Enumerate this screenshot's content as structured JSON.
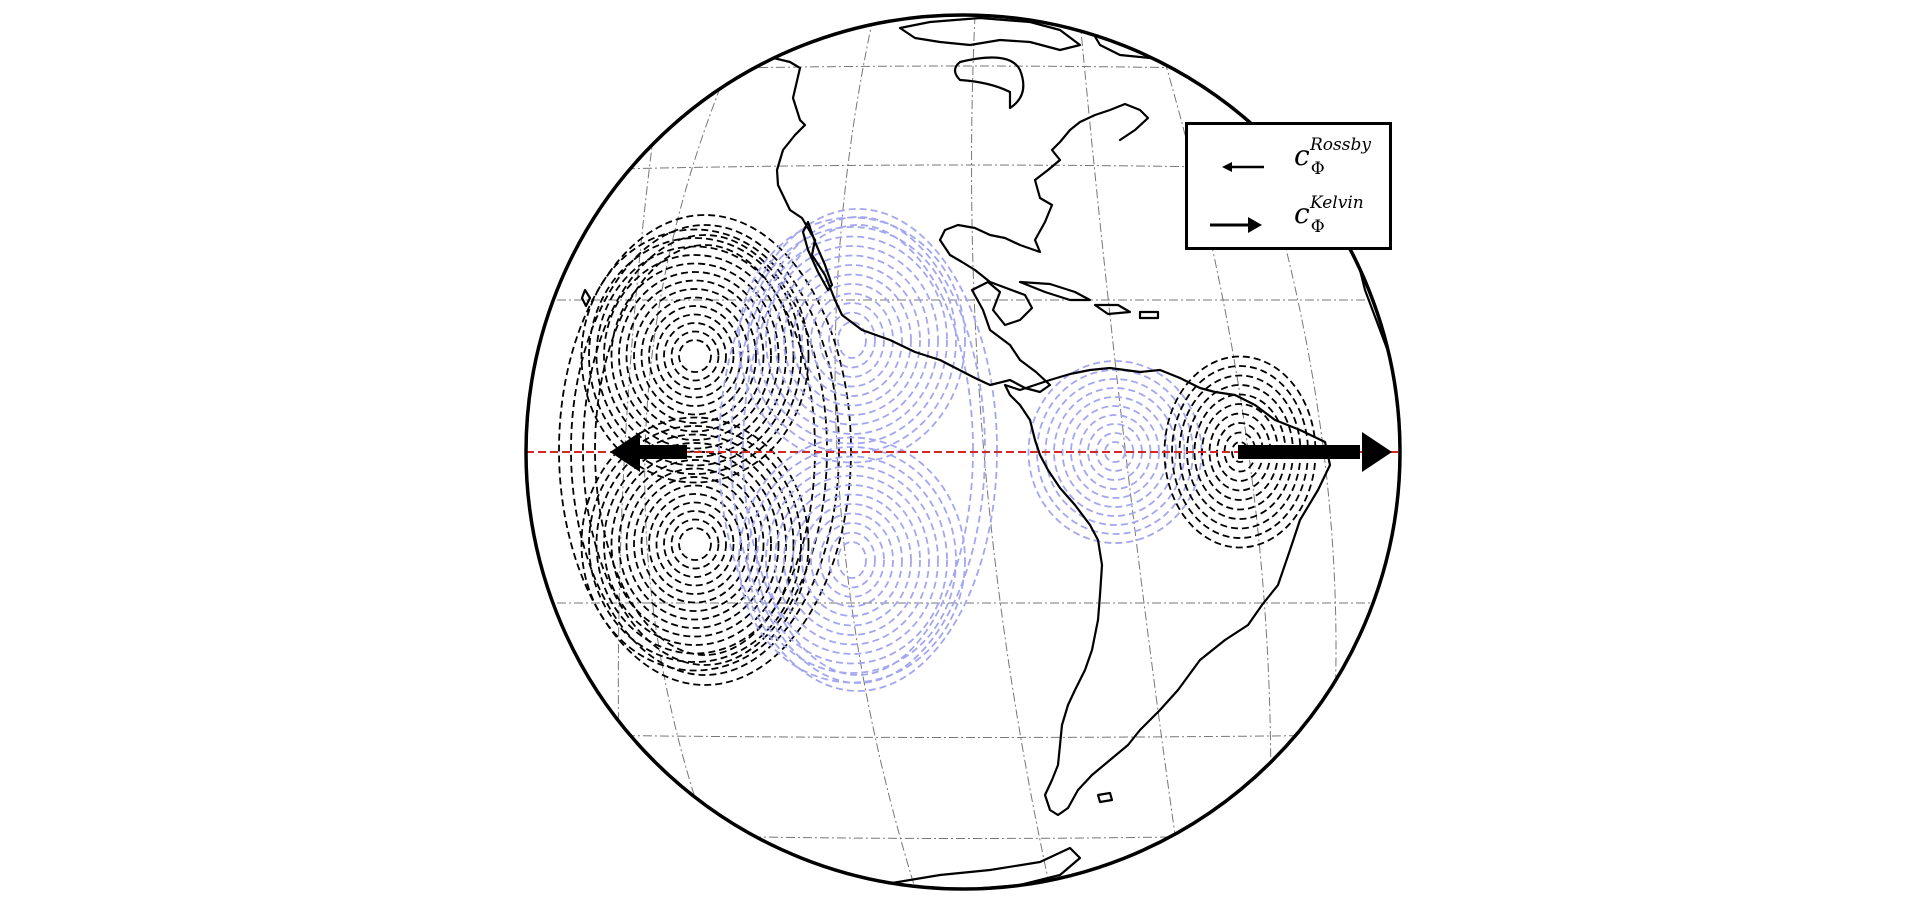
{
  "figure": {
    "projection": "orthographic",
    "equator_line_color": "#d62728",
    "negative_contour_color": "#000000",
    "positive_contour_color": "#a3a6f0",
    "arrow_color": "#000000",
    "coastline_color": "#000000",
    "graticule": "dash-dot"
  },
  "legend": {
    "entries": [
      {
        "symbol": "c",
        "subscript": "Φ",
        "superscript": "Rossby",
        "arrow": "small-left-arrow"
      },
      {
        "symbol": "c",
        "subscript": "Φ",
        "superscript": "Kelvin",
        "arrow": "right-arrow"
      }
    ]
  },
  "arrows": [
    {
      "name": "rossby-arrow",
      "direction": "west"
    },
    {
      "name": "kelvin-arrow",
      "direction": "east"
    }
  ]
}
